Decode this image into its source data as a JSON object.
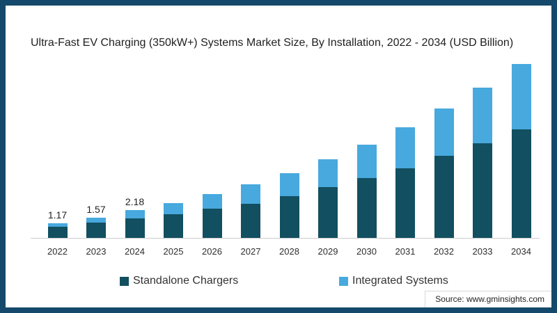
{
  "frame": {
    "border_color": "#15496b",
    "background": "#ffffff"
  },
  "chart": {
    "title": "Ultra-Fast EV Charging (350kW+) Systems Market Size, By Installation, 2022 - 2034 (USD Billion)"
  },
  "chart_data": {
    "type": "bar",
    "stacked": true,
    "title": "Ultra-Fast EV Charging (350kW+) Systems Market Size, By Installation, 2022 - 2034 (USD Billion)",
    "units": "USD Billion",
    "categories": [
      "2022",
      "2023",
      "2024",
      "2025",
      "2026",
      "2027",
      "2028",
      "2029",
      "2030",
      "2031",
      "2032",
      "2033",
      "2034"
    ],
    "series": [
      {
        "name": "Standalone Chargers",
        "color": "#124f60",
        "values": [
          0.9,
          1.2,
          1.53,
          1.87,
          2.29,
          2.7,
          3.3,
          4.0,
          4.72,
          5.47,
          6.43,
          7.41,
          8.5
        ]
      },
      {
        "name": "Integrated Systems",
        "color": "#47a9de",
        "values": [
          0.27,
          0.37,
          0.65,
          0.88,
          1.16,
          1.5,
          1.8,
          2.18,
          2.63,
          3.21,
          3.76,
          4.42,
          5.14
        ]
      }
    ],
    "totals": [
      1.17,
      1.57,
      2.18,
      2.75,
      3.45,
      4.2,
      5.1,
      6.18,
      7.35,
      8.68,
      10.19,
      11.83,
      13.64
    ],
    "value_labels": {
      "2022": "1.17",
      "2023": "1.57",
      "2024": "2.18"
    },
    "xlabel": "",
    "ylabel": "",
    "ylim": [
      0,
      14
    ],
    "grid": false,
    "y_axis_visible": false,
    "legend_position": "bottom"
  },
  "axis": {
    "color": "#cccccc"
  },
  "source": {
    "text": "Source: www.gminsights.com"
  }
}
